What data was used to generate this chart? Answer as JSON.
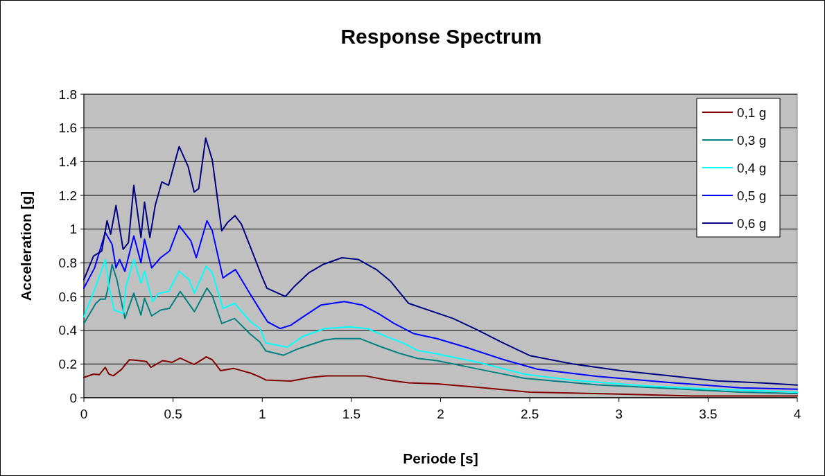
{
  "chart_data": {
    "type": "line",
    "title": "Response Spectrum",
    "xlabel": "Periode [s]",
    "ylabel": "Acceleration [g]",
    "xlim": [
      0,
      4
    ],
    "ylim": [
      0,
      1.8
    ],
    "xticks": [
      0,
      0.5,
      1,
      1.5,
      2,
      2.5,
      3,
      3.5,
      4
    ],
    "yticks": [
      0,
      0.2,
      0.4,
      0.6,
      0.8,
      1,
      1.2,
      1.4,
      1.6,
      1.8
    ],
    "grid": "y",
    "legend": "top right",
    "line_style": "solid",
    "marker": "none",
    "series": [
      {
        "name": "0,1 g",
        "color": "#800000",
        "x": [
          0,
          0.054,
          0.087,
          0.12,
          0.14,
          0.165,
          0.21,
          0.255,
          0.294,
          0.35,
          0.376,
          0.443,
          0.495,
          0.54,
          0.618,
          0.686,
          0.72,
          0.767,
          0.838,
          0.935,
          0.987,
          1.02,
          1.16,
          1.27,
          1.36,
          1.58,
          1.7,
          1.82,
          1.98,
          2.21,
          2.5,
          3,
          3.41,
          4
        ],
        "values": [
          0.12,
          0.14,
          0.137,
          0.18,
          0.14,
          0.13,
          0.167,
          0.225,
          0.222,
          0.215,
          0.18,
          0.22,
          0.21,
          0.235,
          0.197,
          0.242,
          0.225,
          0.16,
          0.174,
          0.146,
          0.123,
          0.105,
          0.099,
          0.12,
          0.129,
          0.129,
          0.105,
          0.088,
          0.082,
          0.062,
          0.033,
          0.022,
          0.01,
          0.01
        ]
      },
      {
        "name": "0,3 g",
        "color": "#008080",
        "x": [
          0,
          0.067,
          0.093,
          0.12,
          0.14,
          0.158,
          0.185,
          0.23,
          0.28,
          0.32,
          0.34,
          0.38,
          0.43,
          0.48,
          0.54,
          0.62,
          0.69,
          0.72,
          0.773,
          0.845,
          0.93,
          0.987,
          1.02,
          1.12,
          1.2,
          1.35,
          1.41,
          1.55,
          1.66,
          1.77,
          1.87,
          1.98,
          2.21,
          2.47,
          2.88,
          3.28,
          3.68,
          4
        ],
        "values": [
          0.44,
          0.56,
          0.585,
          0.585,
          0.67,
          0.79,
          0.7,
          0.47,
          0.62,
          0.49,
          0.59,
          0.485,
          0.52,
          0.53,
          0.63,
          0.51,
          0.65,
          0.605,
          0.44,
          0.47,
          0.38,
          0.33,
          0.277,
          0.252,
          0.29,
          0.342,
          0.35,
          0.35,
          0.304,
          0.263,
          0.233,
          0.22,
          0.17,
          0.115,
          0.076,
          0.055,
          0.033,
          0.025
        ]
      },
      {
        "name": "0,4 g",
        "color": "#00ffff",
        "x": [
          0,
          0.067,
          0.12,
          0.14,
          0.17,
          0.22,
          0.236,
          0.28,
          0.32,
          0.34,
          0.385,
          0.42,
          0.475,
          0.534,
          0.59,
          0.62,
          0.686,
          0.72,
          0.78,
          0.845,
          0.935,
          0.987,
          1.02,
          1.14,
          1.23,
          1.35,
          1.49,
          1.59,
          1.69,
          1.8,
          1.87,
          1.98,
          2.21,
          2.47,
          2.74,
          3.15,
          3.55,
          4
        ],
        "values": [
          0.48,
          0.66,
          0.82,
          0.66,
          0.52,
          0.5,
          0.66,
          0.82,
          0.68,
          0.75,
          0.57,
          0.62,
          0.63,
          0.75,
          0.7,
          0.62,
          0.78,
          0.74,
          0.53,
          0.56,
          0.45,
          0.41,
          0.325,
          0.3,
          0.365,
          0.41,
          0.42,
          0.41,
          0.365,
          0.32,
          0.28,
          0.26,
          0.21,
          0.14,
          0.104,
          0.07,
          0.049,
          0.033
        ]
      },
      {
        "name": "0,5 g",
        "color": "#0000ff",
        "x": [
          0,
          0.06,
          0.12,
          0.158,
          0.18,
          0.2,
          0.23,
          0.28,
          0.32,
          0.34,
          0.38,
          0.43,
          0.48,
          0.534,
          0.6,
          0.63,
          0.69,
          0.72,
          0.78,
          0.806,
          0.85,
          0.935,
          0.994,
          1.03,
          1.1,
          1.16,
          1.23,
          1.33,
          1.46,
          1.56,
          1.65,
          1.74,
          1.85,
          1.98,
          2.14,
          2.34,
          2.54,
          2.88,
          3.28,
          3.68,
          4
        ],
        "values": [
          0.65,
          0.77,
          0.98,
          0.91,
          0.77,
          0.82,
          0.75,
          0.96,
          0.8,
          0.94,
          0.77,
          0.83,
          0.87,
          1.02,
          0.93,
          0.83,
          1.05,
          0.99,
          0.71,
          0.73,
          0.76,
          0.61,
          0.51,
          0.45,
          0.41,
          0.43,
          0.48,
          0.55,
          0.57,
          0.55,
          0.5,
          0.44,
          0.38,
          0.35,
          0.3,
          0.23,
          0.17,
          0.126,
          0.09,
          0.059,
          0.05
        ]
      },
      {
        "name": "0,6 g",
        "color": "#000080",
        "x": [
          0,
          0.054,
          0.1,
          0.13,
          0.15,
          0.18,
          0.22,
          0.25,
          0.28,
          0.32,
          0.34,
          0.37,
          0.4,
          0.437,
          0.475,
          0.534,
          0.585,
          0.618,
          0.644,
          0.683,
          0.72,
          0.773,
          0.806,
          0.847,
          0.883,
          0.935,
          0.994,
          1.026,
          1.13,
          1.18,
          1.26,
          1.34,
          1.447,
          1.538,
          1.64,
          1.72,
          1.82,
          2.07,
          2.21,
          2.34,
          2.5,
          2.74,
          3.01,
          3.28,
          3.55,
          3.81,
          4
        ],
        "values": [
          0.7,
          0.84,
          0.87,
          1.05,
          0.97,
          1.14,
          0.88,
          0.92,
          1.26,
          0.95,
          1.16,
          0.95,
          1.14,
          1.28,
          1.26,
          1.49,
          1.37,
          1.22,
          1.24,
          1.54,
          1.41,
          0.99,
          1.04,
          1.08,
          1.03,
          0.89,
          0.73,
          0.65,
          0.6,
          0.66,
          0.74,
          0.79,
          0.83,
          0.82,
          0.76,
          0.69,
          0.56,
          0.47,
          0.4,
          0.33,
          0.25,
          0.2,
          0.16,
          0.13,
          0.1,
          0.087,
          0.075
        ]
      }
    ]
  }
}
